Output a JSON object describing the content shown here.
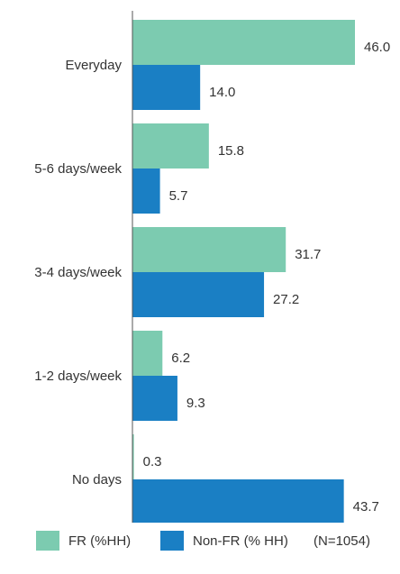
{
  "chart_data": {
    "type": "bar",
    "orientation": "horizontal",
    "categories": [
      "Everyday",
      "5-6 days/week",
      "3-4 days/week",
      "1-2 days/week",
      "No days"
    ],
    "series": [
      {
        "name": "FR (%HH)",
        "values": [
          46.0,
          15.8,
          31.7,
          6.2,
          0.3
        ],
        "color": "#7ccbb0"
      },
      {
        "name": "Non-FR (% HH)",
        "values": [
          14.0,
          5.7,
          27.2,
          9.3,
          43.7
        ],
        "color": "#1a7fc4"
      }
    ],
    "xlim": [
      0,
      46
    ],
    "grid": false,
    "legend_position": "bottom",
    "note": "(N=1054)"
  }
}
